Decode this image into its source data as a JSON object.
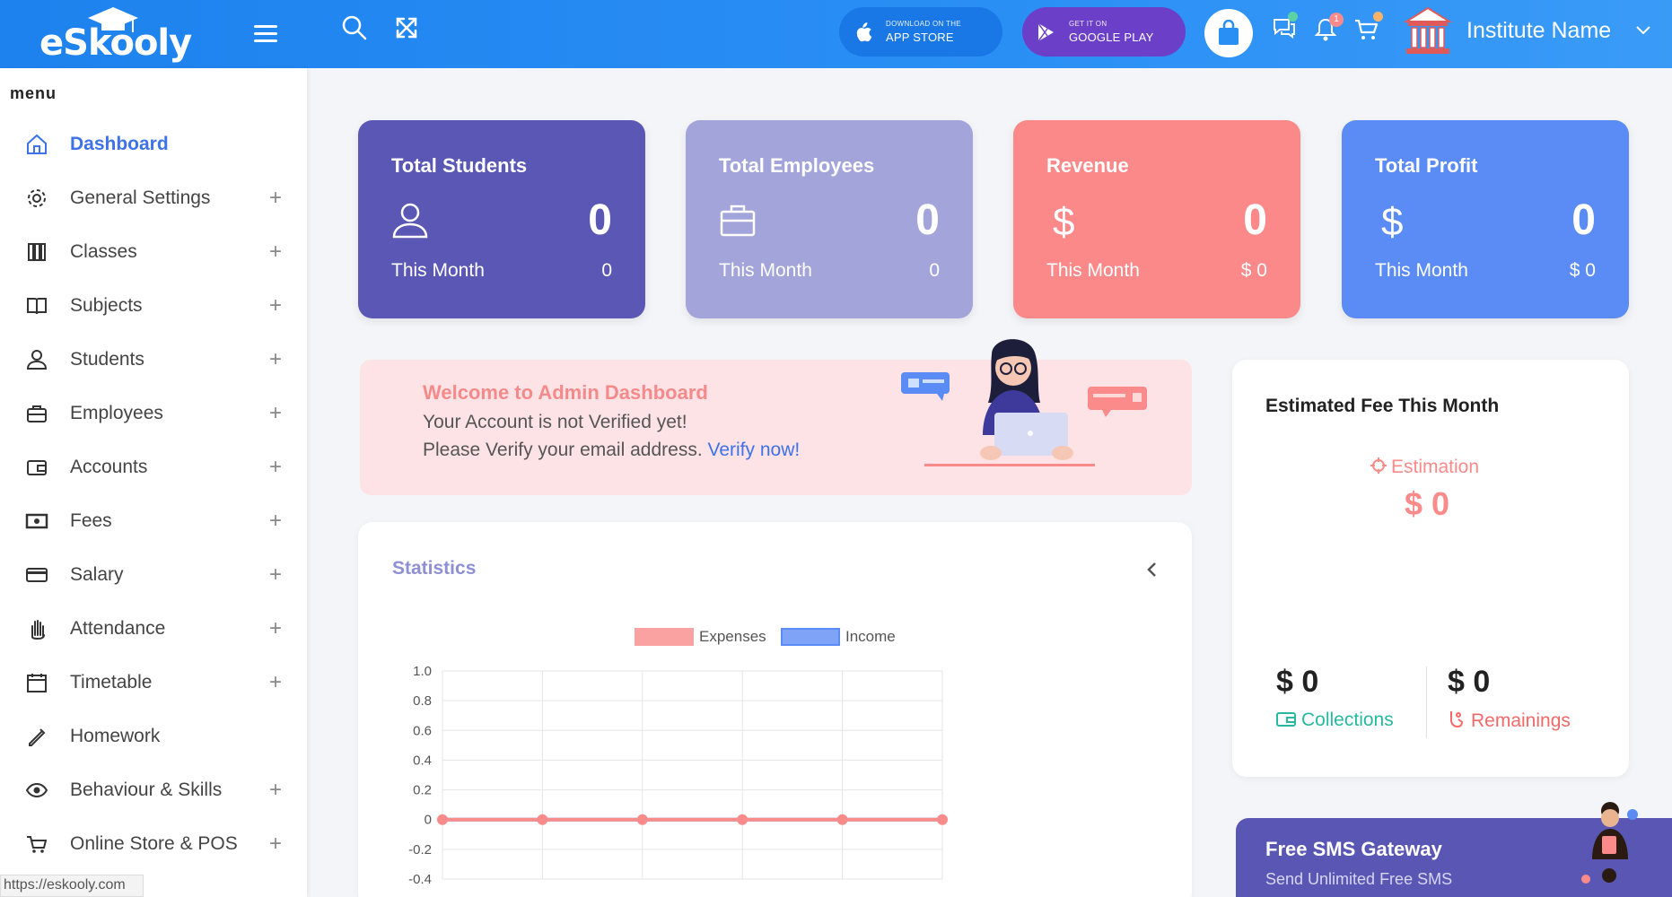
{
  "header": {
    "logo_text": "eSkooly",
    "app_store": {
      "small": "DOWNLOAD ON THE",
      "big": "APP STORE"
    },
    "google_play": {
      "small": "GET IT ON",
      "big": "GOOGLE PLAY"
    },
    "notification_count": "1",
    "institute_name": "Institute Name"
  },
  "sidebar": {
    "title": "menu",
    "items": [
      {
        "label": "Dashboard",
        "icon": "home-icon",
        "expandable": false
      },
      {
        "label": "General Settings",
        "icon": "gear-icon",
        "expandable": true
      },
      {
        "label": "Classes",
        "icon": "books-icon",
        "expandable": true
      },
      {
        "label": "Subjects",
        "icon": "book-icon",
        "expandable": true
      },
      {
        "label": "Students",
        "icon": "user-icon",
        "expandable": true
      },
      {
        "label": "Employees",
        "icon": "briefcase-icon",
        "expandable": true
      },
      {
        "label": "Accounts",
        "icon": "wallet-icon",
        "expandable": true
      },
      {
        "label": "Fees",
        "icon": "cash-icon",
        "expandable": true
      },
      {
        "label": "Salary",
        "icon": "credit-card-icon",
        "expandable": true
      },
      {
        "label": "Attendance",
        "icon": "hand-icon",
        "expandable": true
      },
      {
        "label": "Timetable",
        "icon": "calendar-icon",
        "expandable": true
      },
      {
        "label": "Homework",
        "icon": "pen-icon",
        "expandable": false
      },
      {
        "label": "Behaviour & Skills",
        "icon": "eye-icon",
        "expandable": true
      },
      {
        "label": "Online Store & POS",
        "icon": "cart-icon",
        "expandable": true
      }
    ],
    "plus_symbol": "+",
    "status_url": "https://eskooly.com"
  },
  "cards": {
    "students": {
      "title": "Total Students",
      "value": "0",
      "sub_label": "This Month",
      "sub_value": "0"
    },
    "employees": {
      "title": "Total Employees",
      "value": "0",
      "sub_label": "This Month",
      "sub_value": "0"
    },
    "revenue": {
      "title": "Revenue",
      "value": "0",
      "sub_label": "This Month",
      "sub_value": "$ 0"
    },
    "profit": {
      "title": "Total Profit",
      "value": "0",
      "sub_label": "This Month",
      "sub_value": "$ 0"
    }
  },
  "welcome": {
    "title": "Welcome to Admin Dashboard",
    "line1": "Your Account is not Verified yet!",
    "line2": "Please Verify your email address.",
    "verify_link": "Verify now!"
  },
  "statistics": {
    "title": "Statistics"
  },
  "chart_data": {
    "type": "line",
    "series": [
      {
        "name": "Expenses",
        "color": "#f98b8b",
        "values": [
          0,
          0,
          0,
          0,
          0,
          0
        ]
      },
      {
        "name": "Income",
        "color": "#5b8cf5",
        "values": [
          0,
          0,
          0,
          0,
          0,
          0
        ]
      }
    ],
    "yticks": [
      "1.0",
      "0.8",
      "0.6",
      "0.4",
      "0.2",
      "0",
      "-0.2",
      "-0.4"
    ],
    "ylim": [
      -0.4,
      1.0
    ],
    "grid": true,
    "legend": "top-center"
  },
  "estimate": {
    "title": "Estimated Fee This Month",
    "label": "Estimation",
    "value": "$ 0",
    "collections_value": "$ 0",
    "collections_label": "Collections",
    "remainings_value": "$ 0",
    "remainings_label": "Remainings"
  },
  "sms": {
    "title": "Free SMS Gateway",
    "subtitle": "Send Unlimited Free SMS"
  },
  "colors": {
    "header": "#2a8ff5",
    "accent": "#3d72e8",
    "students_card": "#5b57b4",
    "employees_card": "#a3a4da",
    "revenue_card": "#fc8989",
    "profit_card": "#5b8cf5"
  }
}
